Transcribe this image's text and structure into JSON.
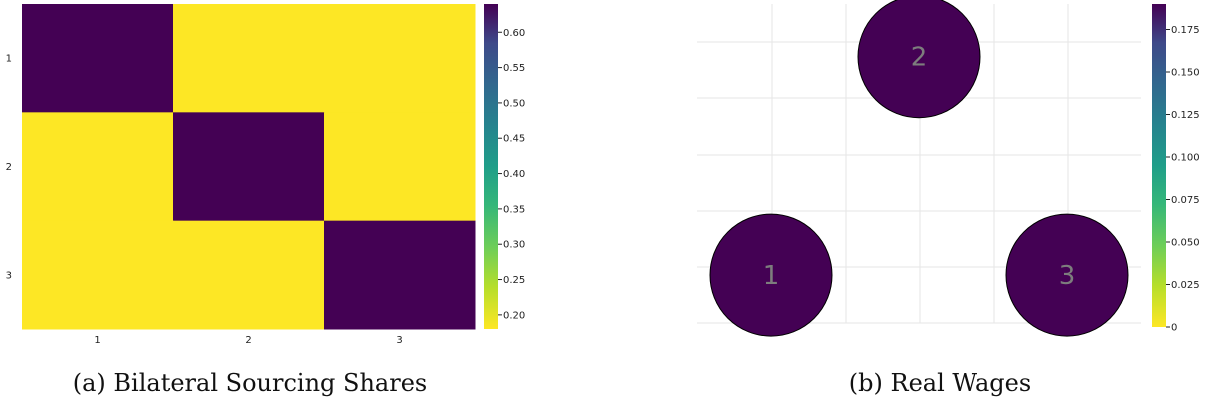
{
  "captions": {
    "a": "(a) Bilateral Sourcing Shares",
    "b": "(b) Real Wages"
  },
  "colors": {
    "viridis_high": "#440154",
    "viridis_low": "#fde725",
    "grid": "#e6e6e6",
    "node_stroke": "#000000",
    "node_label": "#7d7d7d"
  },
  "chart_data": [
    {
      "type": "heatmap",
      "title": "",
      "xlabel": "",
      "ylabel": "",
      "x_categories": [
        "1",
        "2",
        "3"
      ],
      "y_categories": [
        "1",
        "2",
        "3"
      ],
      "values": [
        [
          0.64,
          0.18,
          0.18
        ],
        [
          0.18,
          0.64,
          0.18
        ],
        [
          0.18,
          0.18,
          0.64
        ]
      ],
      "colormap": "viridis_reversed",
      "colorbar": {
        "min": 0.18,
        "max": 0.64,
        "ticks": [
          0.2,
          0.25,
          0.3,
          0.35,
          0.4,
          0.45,
          0.5,
          0.55,
          0.6
        ],
        "tick_labels": [
          "0.20",
          "0.25",
          "0.30",
          "0.35",
          "0.40",
          "0.45",
          "0.50",
          "0.55",
          "0.60"
        ]
      }
    },
    {
      "type": "scatter",
      "title": "",
      "xlabel": "",
      "ylabel": "",
      "grid": true,
      "nodes": [
        {
          "label": "1",
          "x": 1,
          "y": 1,
          "value": 0.19
        },
        {
          "label": "2",
          "x": 2,
          "y": 2.732,
          "value": 0.19
        },
        {
          "label": "3",
          "x": 3,
          "y": 1,
          "value": 0.19
        }
      ],
      "colormap": "viridis_reversed",
      "colorbar": {
        "min": 0,
        "max": 0.19,
        "ticks": [
          0,
          0.025,
          0.05,
          0.075,
          0.1,
          0.125,
          0.15,
          0.175
        ],
        "tick_labels": [
          "0",
          "0.025",
          "0.050",
          "0.075",
          "0.100",
          "0.125",
          "0.150",
          "0.175"
        ]
      }
    }
  ]
}
